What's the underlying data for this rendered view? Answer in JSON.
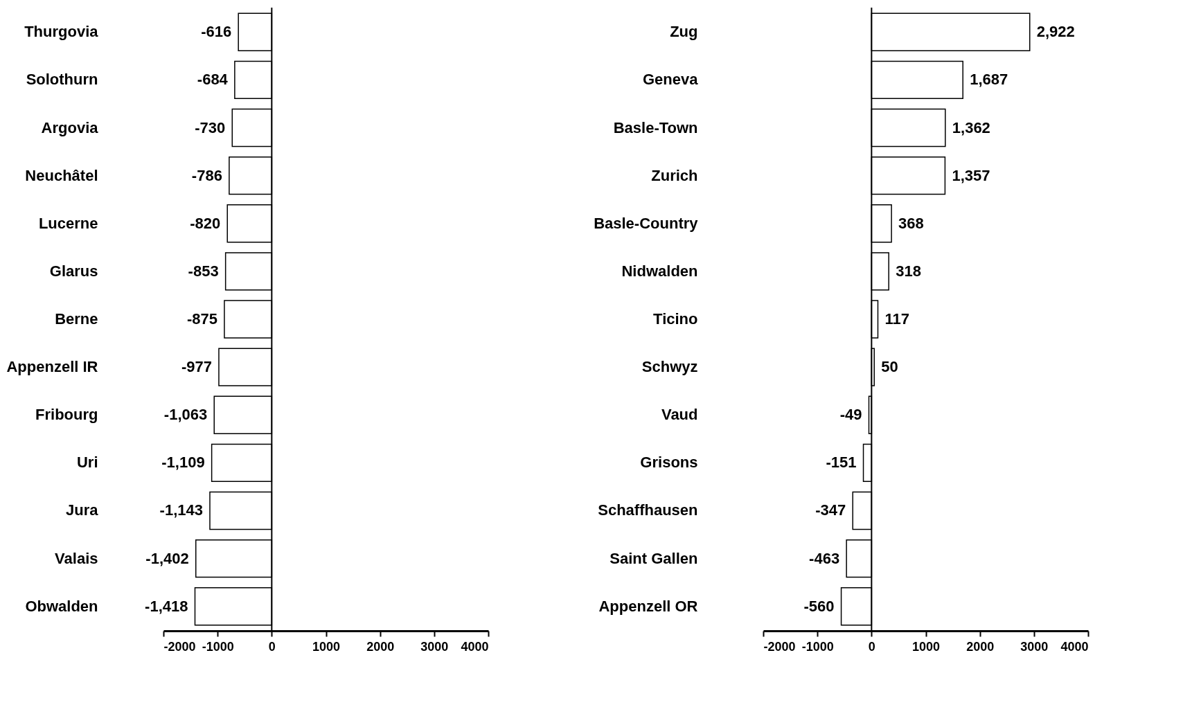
{
  "chart_data": [
    {
      "type": "bar",
      "orientation": "horizontal",
      "categories": [
        "Thurgovia",
        "Solothurn",
        "Argovia",
        "Neuchâtel",
        "Lucerne",
        "Glarus",
        "Berne",
        "Appenzell IR",
        "Fribourg",
        "Uri",
        "Jura",
        "Valais",
        "Obwalden"
      ],
      "series": [
        {
          "color": "#ffffff",
          "values": [
            -616,
            -684,
            -730,
            -786,
            -820,
            -853,
            -875,
            -977,
            -1063,
            -1109,
            -1143,
            -1402,
            -1418
          ],
          "value_labels": [
            "-616",
            "-684",
            "-730",
            "-786",
            "-820",
            "-853",
            "-875",
            "-977",
            "-1,063",
            "-1,109",
            "-1,143",
            "-1,402",
            "-1,418"
          ]
        }
      ],
      "xlim": [
        -2000,
        4000
      ],
      "xticks": [
        -2000,
        -1000,
        0,
        1000,
        2000,
        3000,
        4000
      ],
      "grid": false,
      "ref_lines": [
        {
          "axis": "x",
          "value": 0,
          "color": "#000000"
        }
      ]
    },
    {
      "type": "bar",
      "orientation": "horizontal",
      "categories": [
        "Zug",
        "Geneva",
        "Basle-Town",
        "Zurich",
        "Basle-Country",
        "Nidwalden",
        "Ticino",
        "Schwyz",
        "Vaud",
        "Grisons",
        "Schaffhausen",
        "Saint Gallen",
        "Appenzell OR"
      ],
      "series": [
        {
          "color": "#ffffff",
          "values": [
            2922,
            1687,
            1362,
            1357,
            368,
            318,
            117,
            50,
            -49,
            -151,
            -347,
            -463,
            -560
          ],
          "value_labels": [
            "2,922",
            "1,687",
            "1,362",
            "1,357",
            "368",
            "318",
            "117",
            "50",
            "-49",
            "-151",
            "-347",
            "-463",
            "-560"
          ]
        }
      ],
      "xlim": [
        -2000,
        4000
      ],
      "xticks": [
        -2000,
        -1000,
        0,
        1000,
        2000,
        3000,
        4000
      ],
      "grid": false,
      "ref_lines": [
        {
          "axis": "x",
          "value": 0,
          "color": "#000000"
        }
      ]
    }
  ]
}
